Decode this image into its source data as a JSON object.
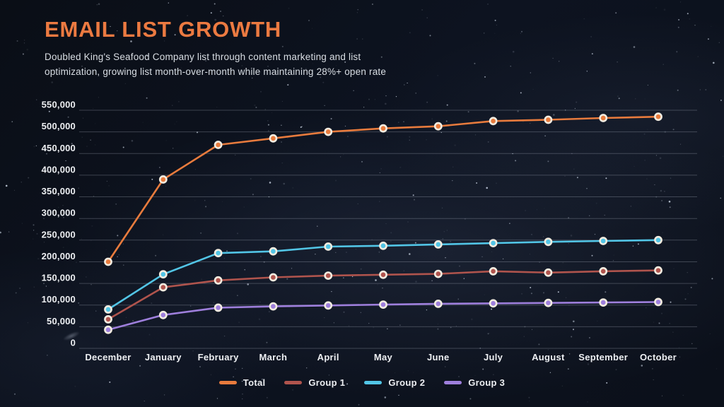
{
  "header": {
    "title": "EMAIL LIST GROWTH",
    "subtitle": "Doubled King's Seafood Company list through content marketing and list optimization, growing list month-over-month while maintaining 28%+ open rate",
    "subtitle_lines": [
      "Doubled King's Seafood Company list through content marketing and list",
      "optimization, growing list month-over-month while maintaining 28%+ open rate"
    ]
  },
  "colors": {
    "title": "#EC7A41",
    "subtitle": "#D9DEE4",
    "axis_label": "#EDEFF2",
    "gridline": "rgba(200,210,225,0.26)",
    "point_ring": "#F2ECE0",
    "background": "#0C111B"
  },
  "chart_data": {
    "type": "line",
    "title": "EMAIL LIST GROWTH",
    "xlabel": "",
    "ylabel": "",
    "categories": [
      "December",
      "January",
      "February",
      "March",
      "April",
      "May",
      "June",
      "July",
      "August",
      "September",
      "October"
    ],
    "series": [
      {
        "name": "Total",
        "color": "#E87B3D",
        "values": [
          200000,
          390000,
          470000,
          485000,
          500000,
          508000,
          513000,
          525000,
          528000,
          532000,
          535000
        ]
      },
      {
        "name": "Group 1",
        "color": "#B0544D",
        "values": [
          67000,
          141000,
          157000,
          164000,
          168000,
          170000,
          172000,
          178000,
          175000,
          178000,
          180000
        ]
      },
      {
        "name": "Group 2",
        "color": "#52C5E6",
        "values": [
          90000,
          171000,
          220000,
          224000,
          235000,
          237000,
          240000,
          243000,
          246000,
          248000,
          250000
        ]
      },
      {
        "name": "Group 3",
        "color": "#9E7FDC",
        "values": [
          43000,
          77000,
          94000,
          97000,
          99000,
          101000,
          103000,
          104000,
          105000,
          106000,
          107000
        ]
      }
    ],
    "ylim": [
      0,
      550000
    ],
    "ytick_step": 50000,
    "y_ticks": [
      0,
      50000,
      100000,
      150000,
      200000,
      250000,
      300000,
      350000,
      400000,
      450000,
      500000,
      550000
    ],
    "grid": true,
    "legend_position": "bottom",
    "legend_entries": [
      "Total",
      "Group 1",
      "Group 2",
      "Group 3"
    ]
  }
}
